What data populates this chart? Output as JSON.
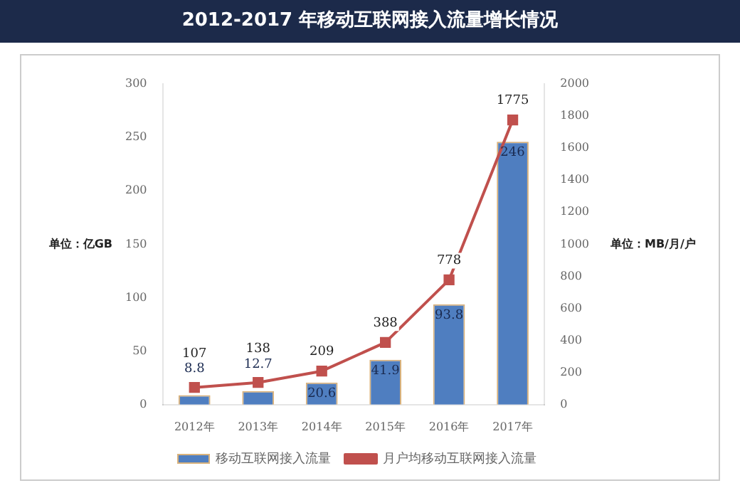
{
  "chart_data": {
    "type": "bar",
    "title": "2012-2017 年移动互联网接入流量增长情况",
    "ylabel": "单位：亿GB",
    "y2label": "单位：MB/月/户",
    "categories": [
      "2012年",
      "2013年",
      "2014年",
      "2015年",
      "2016年",
      "2017年"
    ],
    "series": [
      {
        "name": "移动互联网接入流量",
        "color": "#4f7ec0",
        "values": [
          8.8,
          12.7,
          20.6,
          41.9,
          93.8,
          246
        ]
      },
      {
        "name": "月户均移动互联网接入流量",
        "type": "line",
        "axis": "y2",
        "color": "#c0504d",
        "marker": "square",
        "values": [
          107,
          138,
          209,
          388,
          778,
          1775
        ]
      }
    ],
    "ylim": [
      0,
      300
    ],
    "yticks": [
      0,
      50,
      100,
      150,
      200,
      250,
      300
    ],
    "y2lim": [
      0,
      2000
    ],
    "y2ticks": [
      0,
      200,
      400,
      600,
      800,
      1000,
      1200,
      1400,
      1600,
      1800,
      2000
    ],
    "data_labels": true,
    "legend": "bottom",
    "grid": false
  }
}
